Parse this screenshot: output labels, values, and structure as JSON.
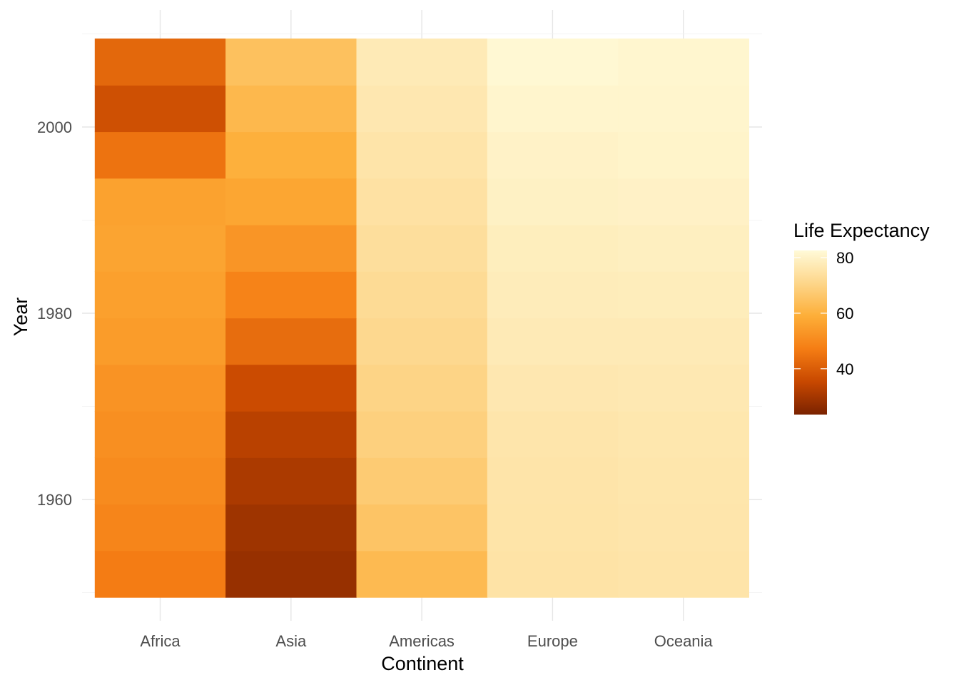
{
  "chart_data": {
    "type": "heatmap",
    "title": "",
    "xlabel": "Continent",
    "ylabel": "Year",
    "categories": [
      "Africa",
      "Asia",
      "Americas",
      "Europe",
      "Oceania"
    ],
    "years": [
      1952,
      1957,
      1962,
      1967,
      1972,
      1977,
      1982,
      1987,
      1992,
      1997,
      2002,
      2007
    ],
    "yticks": [
      1960,
      1980,
      2000
    ],
    "ylim": [
      1949.5,
      2009.5
    ],
    "values": [
      [
        47.0,
        27.9,
        62.5,
        75.0,
        75.5
      ],
      [
        49.0,
        29.0,
        65.5,
        75.3,
        75.8
      ],
      [
        50.5,
        31.0,
        67.5,
        75.5,
        76.0
      ],
      [
        51.5,
        33.0,
        69.0,
        75.8,
        76.2
      ],
      [
        52.5,
        36.0,
        70.2,
        76.5,
        76.8
      ],
      [
        54.5,
        43.5,
        71.5,
        77.5,
        77.5
      ],
      [
        55.5,
        48.5,
        72.5,
        78.0,
        78.2
      ],
      [
        56.5,
        53.0,
        73.5,
        78.5,
        79.0
      ],
      [
        56.0,
        57.0,
        74.5,
        79.5,
        79.8
      ],
      [
        45.0,
        59.5,
        75.5,
        80.0,
        80.5
      ],
      [
        37.0,
        62.0,
        76.5,
        81.0,
        81.0
      ],
      [
        42.5,
        64.5,
        77.5,
        81.8,
        81.2
      ]
    ],
    "legend": {
      "title": "Life Expectancy",
      "ticks": [
        40,
        60,
        80
      ],
      "range": [
        23.5,
        82.6
      ],
      "placement": "right"
    },
    "colors": [
      "#7a2200",
      "#c84800",
      "#f57d14",
      "#fdae38",
      "#fdd68a",
      "#fffad8"
    ],
    "grid": true
  }
}
